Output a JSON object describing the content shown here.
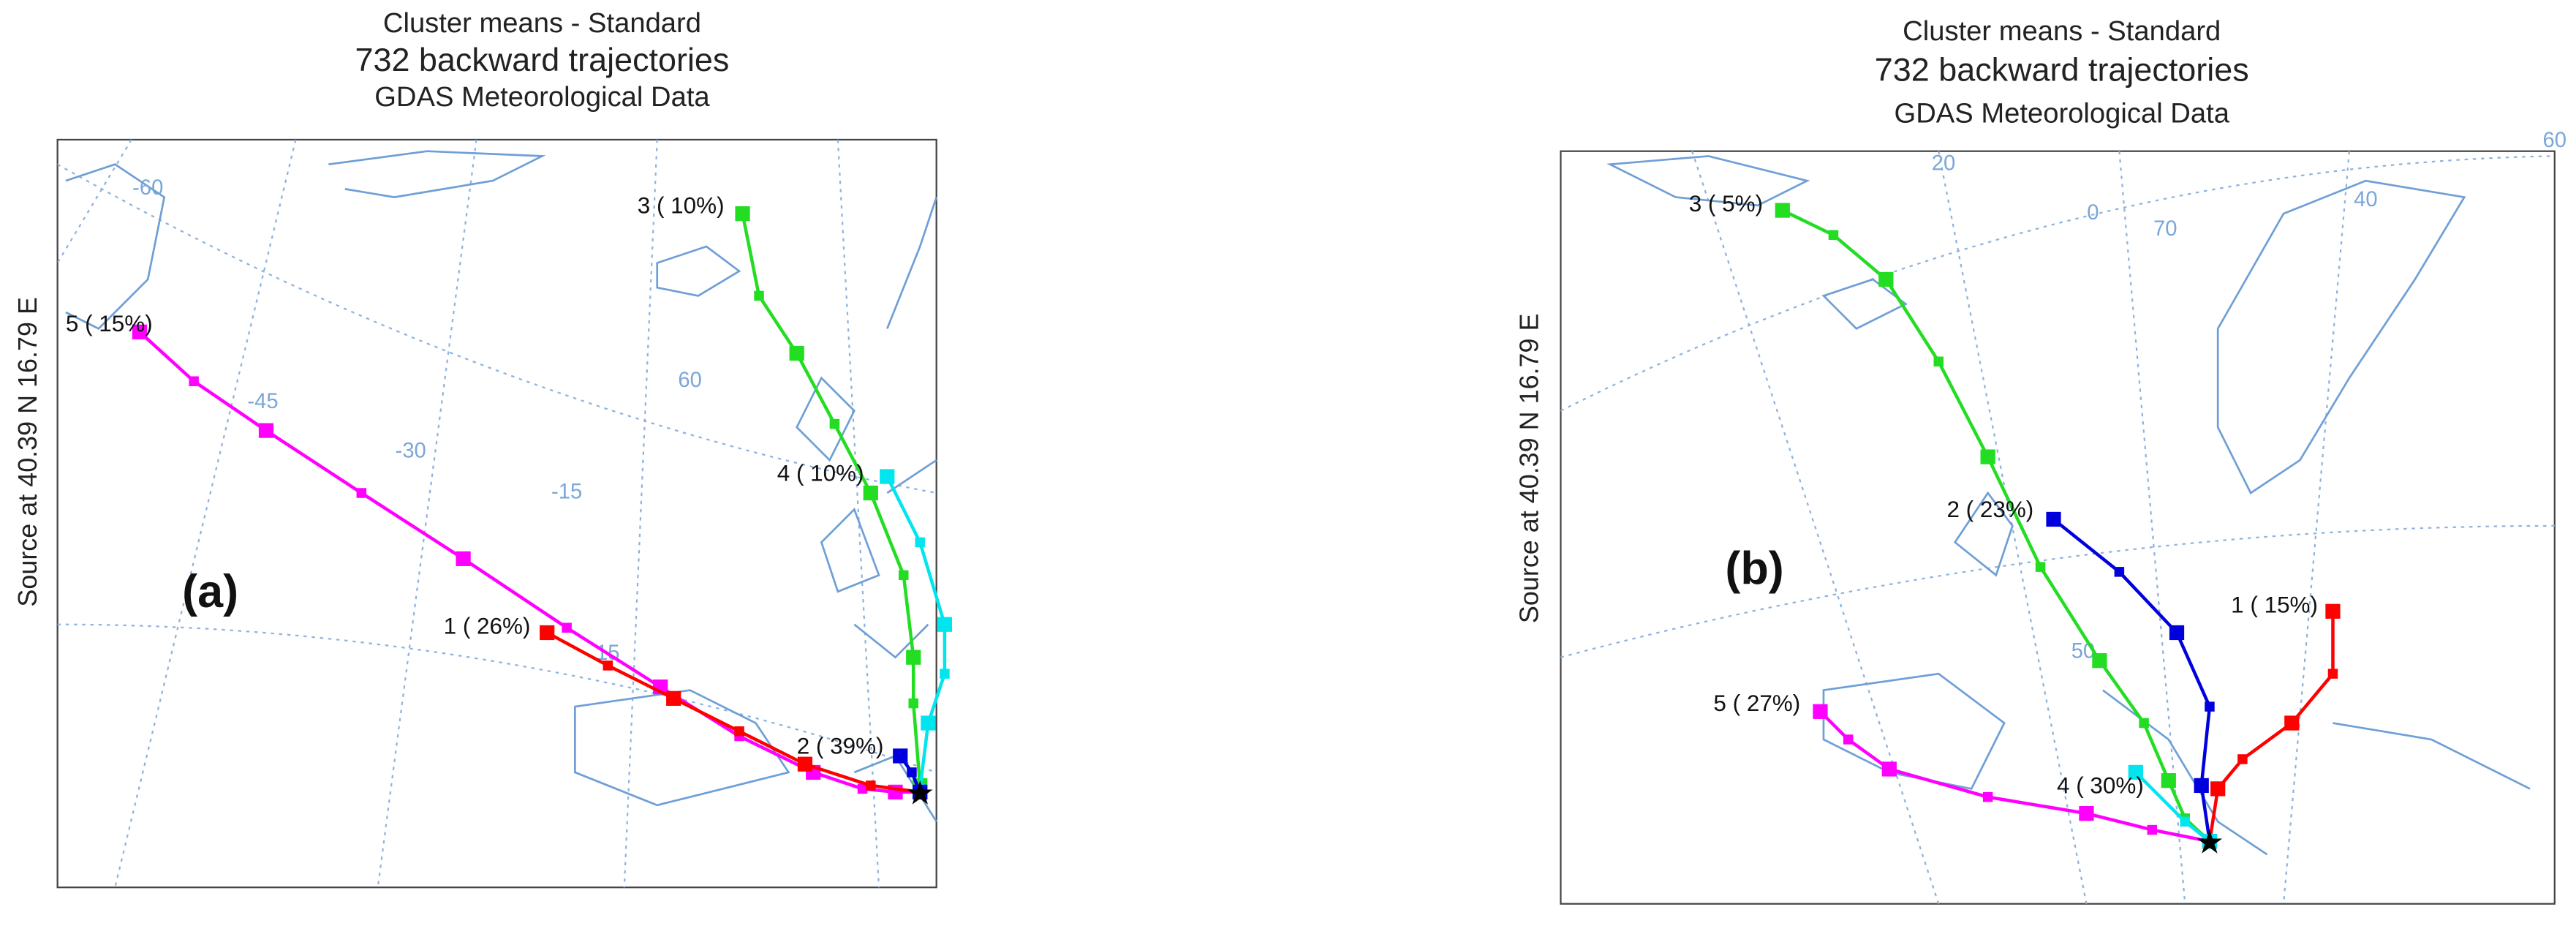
{
  "panels": [
    {
      "label": "(a)",
      "title": [
        "Cluster means - Standard",
        "732 backward trajectories",
        "GDAS Meteorological Data"
      ],
      "source_label": "Source   at   40.39 N   16.79 E",
      "grid_labels": [
        "-60",
        "-45",
        "-30",
        "-15",
        "60",
        "15"
      ],
      "clusters": [
        {
          "label": "5 ( 15%)",
          "color": "#ff00ff"
        },
        {
          "label": "1 ( 26%)",
          "color": "#ff0000"
        },
        {
          "label": "3 ( 10%)",
          "color": "#22dd22"
        },
        {
          "label": "4 ( 10%)",
          "color": "#00e5ee"
        },
        {
          "label": "2 ( 39%)",
          "color": "#0000dd"
        }
      ]
    },
    {
      "label": "(b)",
      "title": [
        "Cluster means - Standard",
        "732 backward trajectories",
        "GDAS Meteorological Data"
      ],
      "source_label": "Source   at   40.39 N   16.79 E",
      "grid_labels": [
        "20",
        "0",
        "70",
        "40",
        "60",
        "50"
      ],
      "clusters": [
        {
          "label": "3 ( 5%)",
          "color": "#22dd22"
        },
        {
          "label": "2 ( 23%)",
          "color": "#0000dd"
        },
        {
          "label": "1 ( 15%)",
          "color": "#ff0000"
        },
        {
          "label": "5 ( 27%)",
          "color": "#ff00ff"
        },
        {
          "label": "4 ( 30%)",
          "color": "#00e5ee"
        }
      ]
    }
  ]
}
